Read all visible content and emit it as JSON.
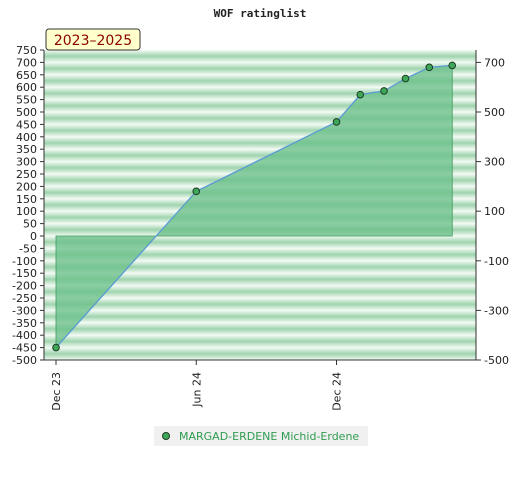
{
  "chart_data": {
    "type": "area",
    "title": "WOF ratinglist",
    "badge": "2023–2025",
    "x_ticks": [
      "Dec 23",
      "Jun 24",
      "Dec 24"
    ],
    "y_left_ticks": [
      750,
      700,
      650,
      600,
      550,
      500,
      450,
      400,
      350,
      300,
      250,
      200,
      150,
      100,
      50,
      0,
      -50,
      -100,
      -150,
      -200,
      -250,
      -300,
      -350,
      -400,
      -450,
      -500
    ],
    "y_right_ticks": [
      700,
      500,
      300,
      100,
      -100,
      -300,
      -500
    ],
    "ylim": [
      -500,
      750
    ],
    "series": [
      {
        "name": "MARGAD-ERDENE Michid-Erdene",
        "points": [
          {
            "x": "2023-12-01",
            "y": -450
          },
          {
            "x": "2024-06-01",
            "y": 180
          },
          {
            "x": "2024-12-01",
            "y": 460
          },
          {
            "x": "2025-01-01",
            "y": 570
          },
          {
            "x": "2025-02-01",
            "y": 585
          },
          {
            "x": "2025-03-01",
            "y": 635
          },
          {
            "x": "2025-04-01",
            "y": 680
          },
          {
            "x": "2025-05-01",
            "y": 688
          }
        ]
      }
    ],
    "colors": {
      "fill": "#6cc08a",
      "line": "#5b9bd5",
      "marker": "#3ea858",
      "marker_stroke": "#1d3d24",
      "band_dark": "#9fd4ae",
      "band_light": "#f3faf4"
    },
    "grid": false,
    "legend_position": "bottom"
  }
}
